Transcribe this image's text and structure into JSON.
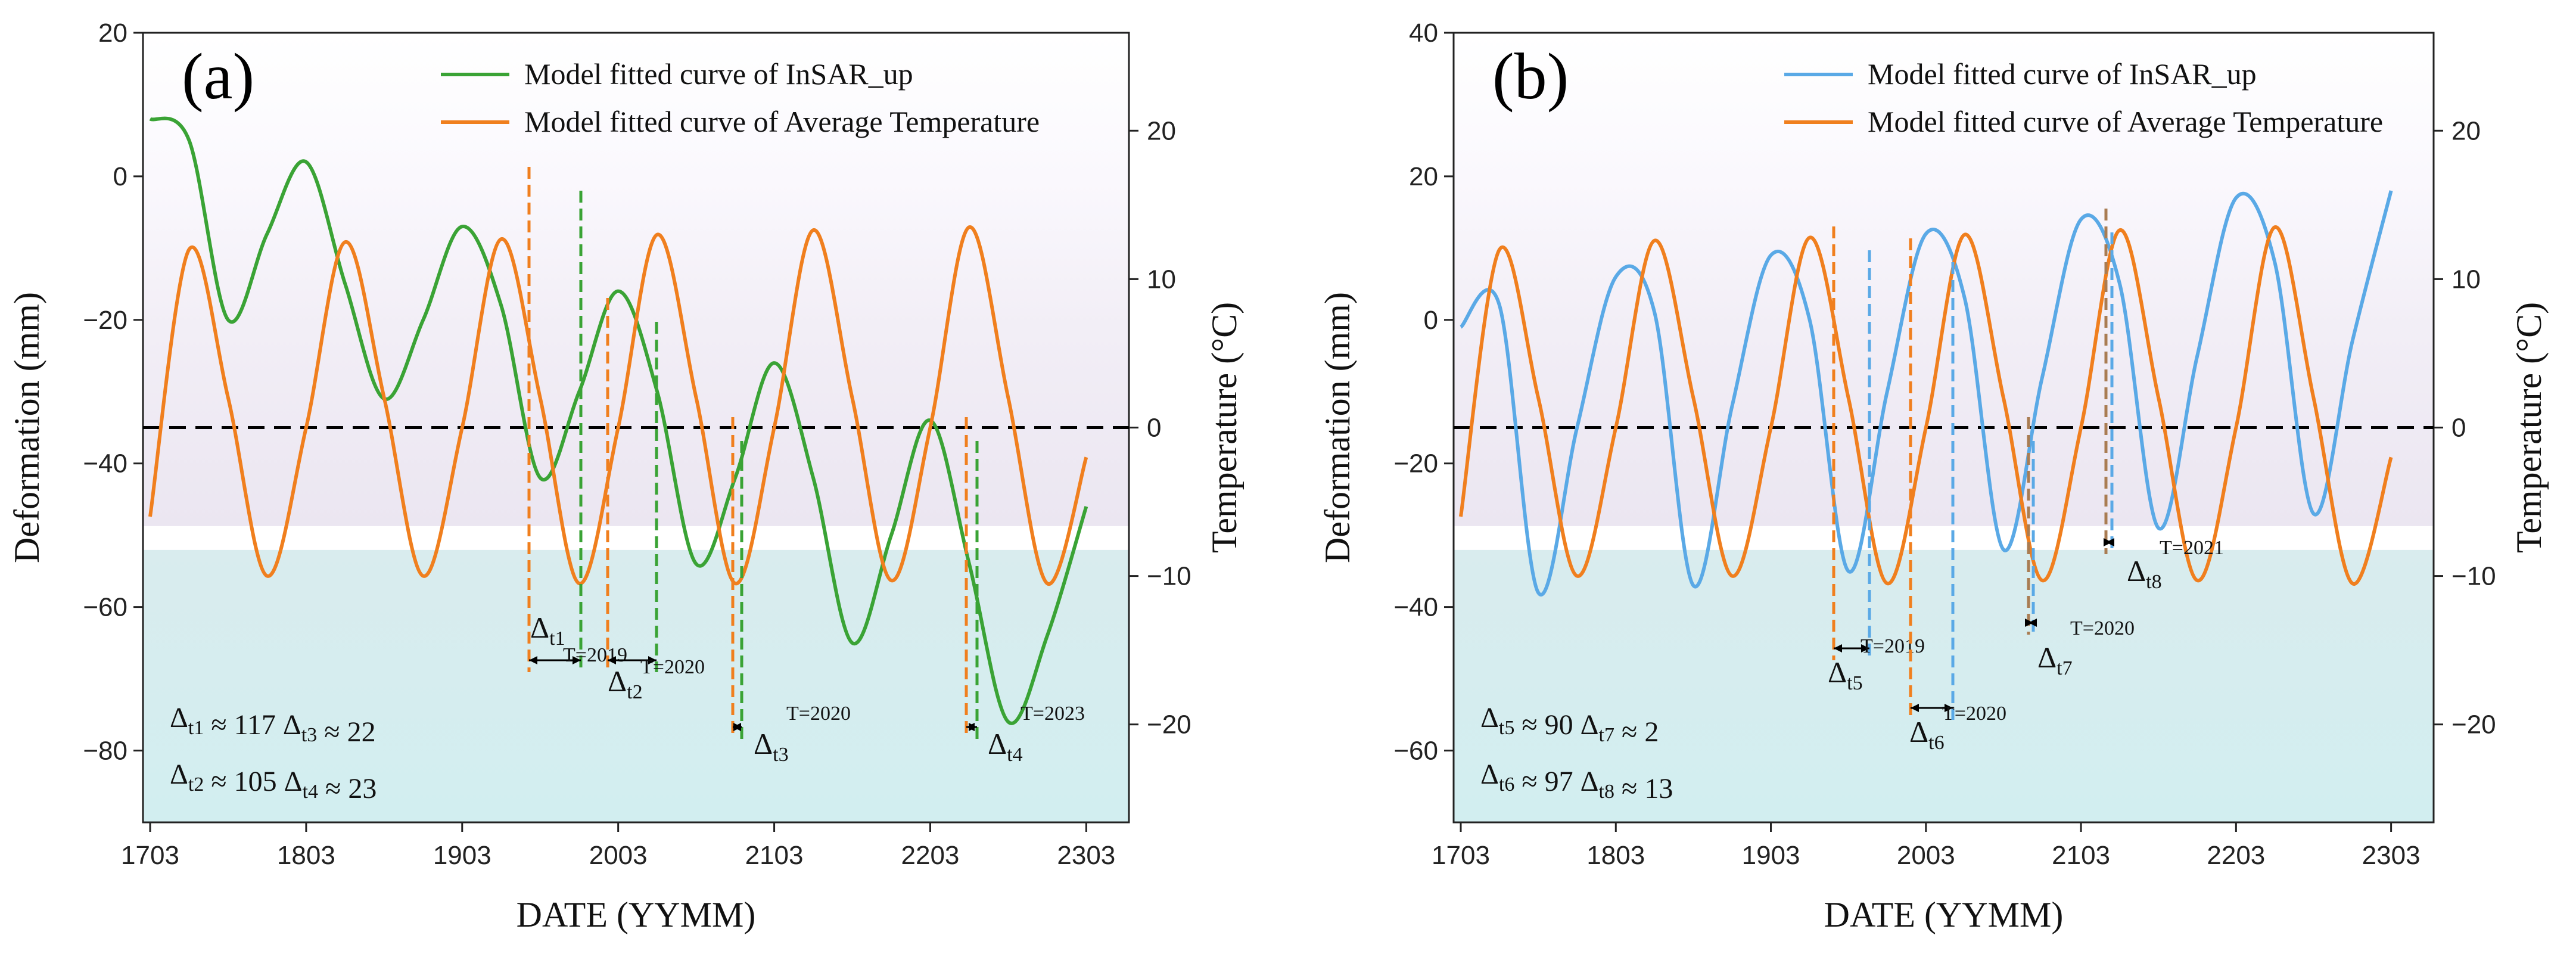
{
  "chart_data": [
    {
      "panel_label": "(a)",
      "type": "line",
      "xlabel": "DATE (YYMM)",
      "ylabel": "Deformation (mm)",
      "y2label": "Temperature (°C)",
      "x_ticks": [
        "1703",
        "1803",
        "1903",
        "2003",
        "2103",
        "2203",
        "2303"
      ],
      "ylim": [
        -90,
        20
      ],
      "y_ticks": [
        "20",
        "0",
        "-20",
        "-40",
        "-60",
        "-80"
      ],
      "y2lim": [
        -25,
        25
      ],
      "y2_ticks": [
        "20",
        "10",
        "0",
        "-10",
        "-20"
      ],
      "zero_line_y2": 0,
      "legend_position": "top-right",
      "series": [
        {
          "name": "Model fitted curve of InSAR_up",
          "axis": "left",
          "color": "#3aa335",
          "x": [
            "1703",
            "1706",
            "1709",
            "1712",
            "1803",
            "1806",
            "1809",
            "1812",
            "1903",
            "1906",
            "1909",
            "1912",
            "2003",
            "2006",
            "2009",
            "2012",
            "2103",
            "2106",
            "2109",
            "2112",
            "2203",
            "2206",
            "2209",
            "2212",
            "2303"
          ],
          "values": [
            8,
            5,
            -20,
            -8,
            2,
            -15,
            -31,
            -20,
            -7,
            -18,
            -42,
            -30,
            -16,
            -30,
            -54,
            -42,
            -26,
            -42,
            -65,
            -50,
            -34,
            -54,
            -76,
            -64,
            -46
          ]
        },
        {
          "name": "Model fitted curve of Average Temperature",
          "axis": "right",
          "color": "#f07f1e",
          "x": [
            "1703",
            "1706",
            "1709",
            "1712",
            "1803",
            "1806",
            "1809",
            "1812",
            "1903",
            "1906",
            "1909",
            "1912",
            "2003",
            "2006",
            "2009",
            "2012",
            "2103",
            "2106",
            "2109",
            "2112",
            "2203",
            "2206",
            "2209",
            "2212",
            "2303"
          ],
          "values": [
            -6,
            12,
            2,
            -10,
            0,
            12.5,
            2,
            -10,
            0,
            12.7,
            2,
            -10.5,
            0,
            13,
            2,
            -10.5,
            0,
            13.3,
            2,
            -10.3,
            0,
            13.5,
            2,
            -10.5,
            -2
          ]
        }
      ],
      "annotations": [
        {
          "label_base": "Δ",
          "sub": "t1",
          "sup": "T=2019"
        },
        {
          "label_base": "Δ",
          "sub": "t2",
          "sup": "T=2020"
        },
        {
          "label_base": "Δ",
          "sub": "t3",
          "sup": "T=2020"
        },
        {
          "label_base": "Δ",
          "sub": "t4",
          "sup": "T=2023"
        }
      ],
      "stats": [
        {
          "sub1": "t1",
          "val1": "≈ 117",
          "sub2": "t3",
          "val2": "≈ 22"
        },
        {
          "sub1": "t2",
          "val1": "≈ 105",
          "sub2": "t4",
          "val2": "≈ 23"
        }
      ]
    },
    {
      "panel_label": "(b)",
      "type": "line",
      "xlabel": "DATE (YYMM)",
      "ylabel": "Deformation (mm)",
      "y2label": "Temperature (°C)",
      "x_ticks": [
        "1703",
        "1803",
        "1903",
        "2003",
        "2103",
        "2203",
        "2303"
      ],
      "ylim": [
        -70,
        40
      ],
      "y_ticks": [
        "40",
        "20",
        "0",
        "-20",
        "-40",
        "-60"
      ],
      "y2lim": [
        -25,
        25
      ],
      "y2_ticks": [
        "20",
        "10",
        "0",
        "-10",
        "-20"
      ],
      "zero_line_y2": 0,
      "legend_position": "top-right",
      "series": [
        {
          "name": "Model fitted curve of InSAR_up",
          "axis": "left",
          "color": "#5aa9e6",
          "x": [
            "1703",
            "1706",
            "1709",
            "1712",
            "1803",
            "1806",
            "1809",
            "1812",
            "1903",
            "1906",
            "1909",
            "1912",
            "2003",
            "2006",
            "2009",
            "2012",
            "2103",
            "2106",
            "2109",
            "2112",
            "2203",
            "2206",
            "2209",
            "2212",
            "2303"
          ],
          "values": [
            -1,
            2,
            -38,
            -15,
            6,
            1,
            -37,
            -12,
            9,
            0,
            -35,
            -10,
            12,
            3,
            -32,
            -8,
            14,
            5,
            -29,
            -5,
            17,
            8,
            -27,
            -3,
            18
          ]
        },
        {
          "name": "Model fitted curve of Average Temperature",
          "axis": "right",
          "color": "#f07f1e",
          "x": [
            "1703",
            "1706",
            "1709",
            "1712",
            "1803",
            "1806",
            "1809",
            "1812",
            "1903",
            "1906",
            "1909",
            "1912",
            "2003",
            "2006",
            "2009",
            "2012",
            "2103",
            "2106",
            "2109",
            "2112",
            "2203",
            "2206",
            "2209",
            "2212",
            "2303"
          ],
          "values": [
            -6,
            12,
            2,
            -10,
            0,
            12.6,
            2,
            -10,
            0,
            12.8,
            2,
            -10.5,
            0,
            13,
            2,
            -10.3,
            0,
            13.3,
            2,
            -10.3,
            0,
            13.5,
            2,
            -10.5,
            -2
          ]
        }
      ],
      "annotations": [
        {
          "label_base": "Δ",
          "sub": "t5",
          "sup": "T=2019"
        },
        {
          "label_base": "Δ",
          "sub": "t6",
          "sup": "T=2020"
        },
        {
          "label_base": "Δ",
          "sub": "t7",
          "sup": "T=2020"
        },
        {
          "label_base": "Δ",
          "sub": "t8",
          "sup": "T=2021"
        }
      ],
      "stats": [
        {
          "sub1": "t5",
          "val1": "≈ 90",
          "sub2": "t7",
          "val2": "≈ 2"
        },
        {
          "sub1": "t6",
          "val1": "≈ 97",
          "sub2": "t8",
          "val2": "≈ 13"
        }
      ]
    }
  ]
}
